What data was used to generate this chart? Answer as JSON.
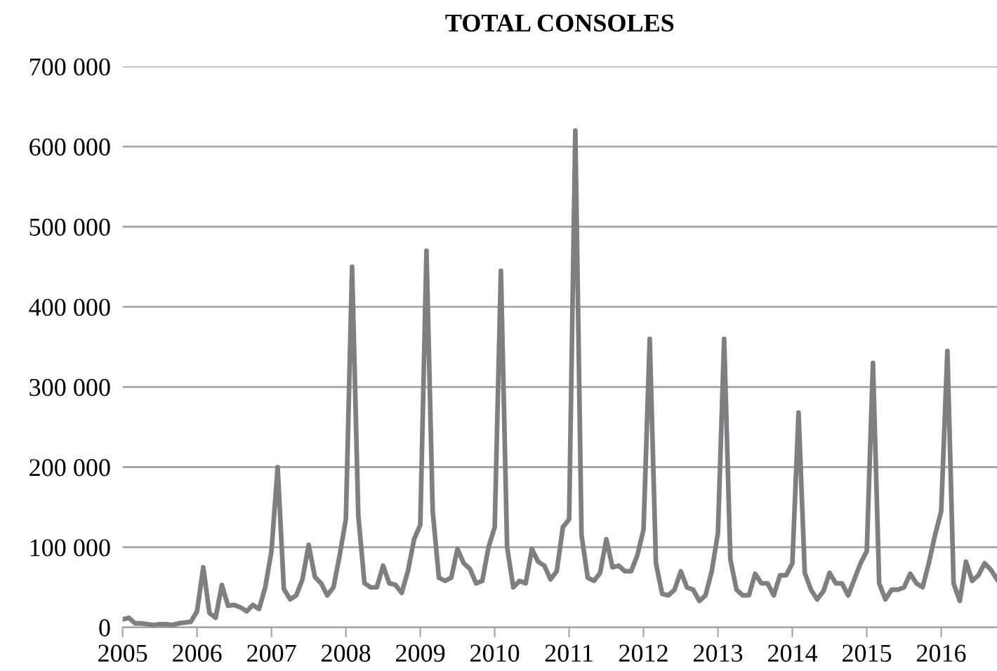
{
  "chart_data": {
    "type": "line",
    "title": "TOTAL CONSOLES",
    "x": [
      "2005-01",
      "2005-02",
      "2005-03",
      "2005-04",
      "2005-05",
      "2005-06",
      "2005-07",
      "2005-08",
      "2005-09",
      "2005-10",
      "2005-11",
      "2005-12",
      "2006-01",
      "2006-02",
      "2006-03",
      "2006-04",
      "2006-05",
      "2006-06",
      "2006-07",
      "2006-08",
      "2006-09",
      "2006-10",
      "2006-11",
      "2006-12",
      "2007-01",
      "2007-02",
      "2007-03",
      "2007-04",
      "2007-05",
      "2007-06",
      "2007-07",
      "2007-08",
      "2007-09",
      "2007-10",
      "2007-11",
      "2007-12",
      "2008-01",
      "2008-02",
      "2008-03",
      "2008-04",
      "2008-05",
      "2008-06",
      "2008-07",
      "2008-08",
      "2008-09",
      "2008-10",
      "2008-11",
      "2008-12",
      "2009-01",
      "2009-02",
      "2009-03",
      "2009-04",
      "2009-05",
      "2009-06",
      "2009-07",
      "2009-08",
      "2009-09",
      "2009-10",
      "2009-11",
      "2009-12",
      "2010-01",
      "2010-02",
      "2010-03",
      "2010-04",
      "2010-05",
      "2010-06",
      "2010-07",
      "2010-08",
      "2010-09",
      "2010-10",
      "2010-11",
      "2010-12",
      "2011-01",
      "2011-02",
      "2011-03",
      "2011-04",
      "2011-05",
      "2011-06",
      "2011-07",
      "2011-08",
      "2011-09",
      "2011-10",
      "2011-11",
      "2011-12",
      "2012-01",
      "2012-02",
      "2012-03",
      "2012-04",
      "2012-05",
      "2012-06",
      "2012-07",
      "2012-08",
      "2012-09",
      "2012-10",
      "2012-11",
      "2012-12",
      "2013-01",
      "2013-02",
      "2013-03",
      "2013-04",
      "2013-05",
      "2013-06",
      "2013-07",
      "2013-08",
      "2013-09",
      "2013-10",
      "2013-11",
      "2013-12",
      "2014-01",
      "2014-02",
      "2014-03",
      "2014-04",
      "2014-05",
      "2014-06",
      "2014-07",
      "2014-08",
      "2014-09",
      "2014-10",
      "2014-11",
      "2014-12",
      "2015-01",
      "2015-02",
      "2015-03",
      "2015-04",
      "2015-05",
      "2015-06",
      "2015-07",
      "2015-08",
      "2015-09",
      "2015-10",
      "2015-11",
      "2015-12",
      "2016-01",
      "2016-02",
      "2016-03",
      "2016-04",
      "2016-05",
      "2016-06",
      "2016-07",
      "2016-08",
      "2016-09",
      "2016-10"
    ],
    "series": [
      {
        "color": "#7f7f81",
        "values": [
          10000,
          12000,
          5000,
          5000,
          4000,
          3000,
          4000,
          4000,
          3000,
          5000,
          6000,
          7000,
          20000,
          75000,
          18000,
          12000,
          53000,
          27000,
          28000,
          25000,
          20000,
          28000,
          23000,
          50000,
          95000,
          200000,
          48000,
          35000,
          40000,
          60000,
          103000,
          63000,
          55000,
          40000,
          50000,
          90000,
          135000,
          450000,
          140000,
          55000,
          50000,
          50000,
          77000,
          55000,
          53000,
          43000,
          70000,
          110000,
          128000,
          470000,
          145000,
          62000,
          58000,
          62000,
          98000,
          80000,
          73000,
          55000,
          58000,
          100000,
          125000,
          445000,
          100000,
          50000,
          58000,
          55000,
          98000,
          82000,
          77000,
          60000,
          70000,
          125000,
          135000,
          620000,
          115000,
          62000,
          58000,
          68000,
          110000,
          75000,
          77000,
          70000,
          70000,
          90000,
          122000,
          360000,
          80000,
          42000,
          40000,
          47000,
          70000,
          50000,
          47000,
          33000,
          40000,
          70000,
          118000,
          360000,
          85000,
          47000,
          40000,
          40000,
          67000,
          55000,
          55000,
          40000,
          65000,
          65000,
          80000,
          268000,
          68000,
          47000,
          35000,
          45000,
          68000,
          55000,
          55000,
          40000,
          60000,
          80000,
          95000,
          330000,
          55000,
          35000,
          47000,
          47000,
          50000,
          67000,
          55000,
          50000,
          80000,
          115000,
          145000,
          345000,
          55000,
          33000,
          82000,
          58000,
          65000,
          80000,
          72000,
          60000
        ]
      }
    ],
    "xlim": [
      "2005-01",
      "2016-10"
    ],
    "xticks": [
      {
        "value": "2005-01",
        "label": "2005"
      },
      {
        "value": "2006-01",
        "label": "2006"
      },
      {
        "value": "2007-01",
        "label": "2007"
      },
      {
        "value": "2008-01",
        "label": "2008"
      },
      {
        "value": "2009-01",
        "label": "2009"
      },
      {
        "value": "2010-01",
        "label": "2010"
      },
      {
        "value": "2011-01",
        "label": "2011"
      },
      {
        "value": "2012-01",
        "label": "2012"
      },
      {
        "value": "2013-01",
        "label": "2013"
      },
      {
        "value": "2014-01",
        "label": "2014"
      },
      {
        "value": "2015-01",
        "label": "2015"
      },
      {
        "value": "2016-01",
        "label": "2016"
      }
    ],
    "ylim": [
      0,
      700000
    ],
    "yticks": [
      {
        "value": 0,
        "label": "0"
      },
      {
        "value": 100000,
        "label": "100 000"
      },
      {
        "value": 200000,
        "label": "200 000"
      },
      {
        "value": 300000,
        "label": "300 000"
      },
      {
        "value": 400000,
        "label": "400 000"
      },
      {
        "value": 500000,
        "label": "500 000"
      },
      {
        "value": 600000,
        "label": "600 000"
      },
      {
        "value": 700000,
        "label": "700 000"
      }
    ],
    "grid": "y",
    "legend": false,
    "marker": "none",
    "line_style": "solid"
  }
}
